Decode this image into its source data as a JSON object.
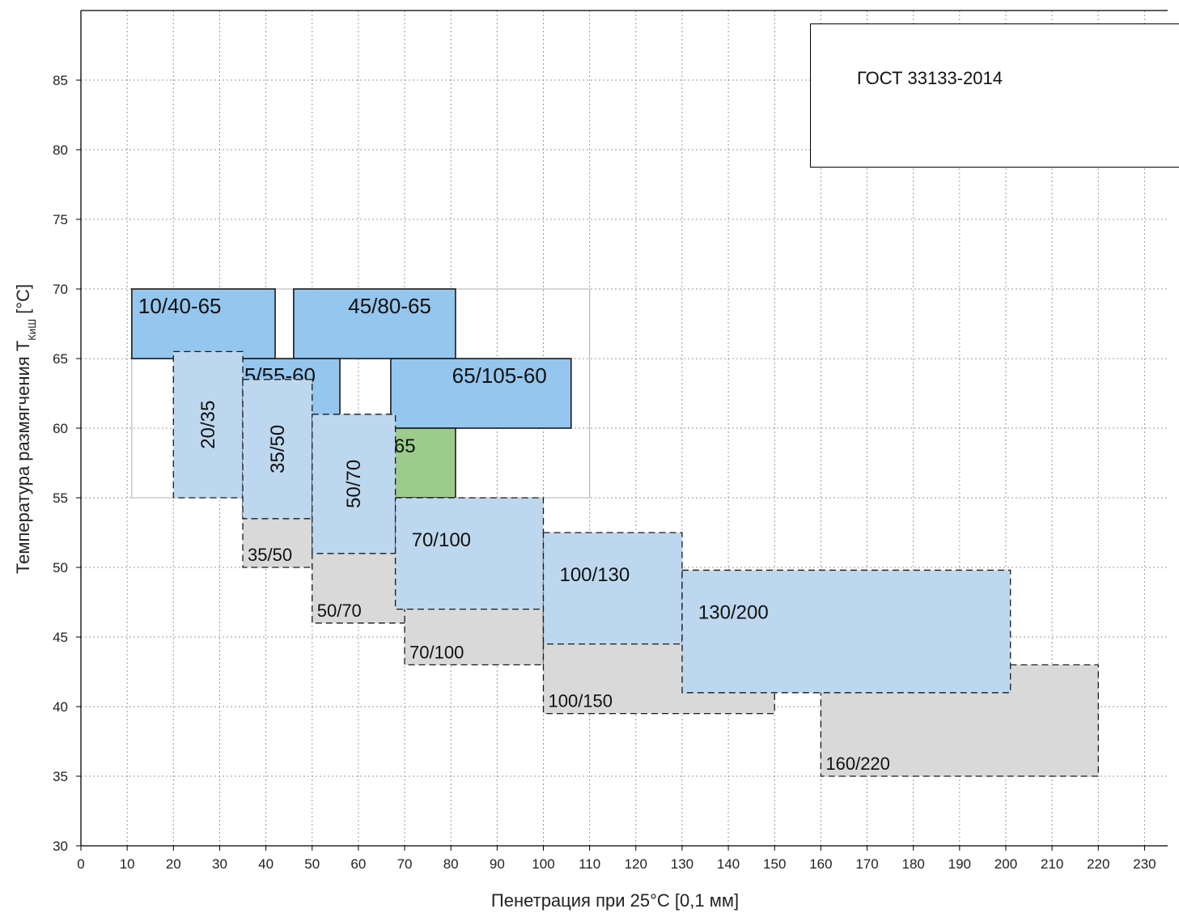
{
  "legend": {
    "text": "ГОСТ 33133-2014"
  },
  "chart_data": {
    "type": "bar",
    "xlabel": "Пенетрация при 25°С [0,1 мм]",
    "ylabel": "Температура размягчения Т",
    "ylabel_subscript": "КиШ",
    "ylabel_unit": " [°С]",
    "xlim": [
      0,
      235
    ],
    "ylim": [
      30,
      90
    ],
    "x_ticks": [
      0,
      10,
      20,
      30,
      40,
      50,
      60,
      70,
      80,
      90,
      100,
      110,
      120,
      130,
      140,
      150,
      160,
      170,
      180,
      190,
      200,
      210,
      220,
      230
    ],
    "y_ticks": [
      30,
      35,
      40,
      45,
      50,
      55,
      60,
      65,
      70,
      75,
      80,
      85
    ],
    "grid": true,
    "legend_position": "top-right",
    "colors": {
      "pmb_blue": "#94c6ee",
      "gost_light_blue": "#bdd7ee",
      "en_gray": "#d9d9d9",
      "green": "#9ccc8c"
    },
    "background_outline": [
      {
        "x0": 11,
        "x1": 110,
        "y0": 55,
        "y1": 70
      }
    ],
    "ranges": [
      {
        "label": "10/40-65",
        "group": "pmb",
        "x0": 11,
        "x1": 42,
        "y0": 65,
        "y1": 70
      },
      {
        "label": "45/80-65",
        "group": "pmb",
        "x0": 46,
        "x1": 81,
        "y0": 65,
        "y1": 70
      },
      {
        "label": "25/55-60",
        "group": "pmb",
        "x0": 25,
        "x1": 56,
        "y0": 60,
        "y1": 65
      },
      {
        "label": "65/105-60",
        "group": "pmb",
        "x0": 67,
        "x1": 106,
        "y0": 60,
        "y1": 65
      },
      {
        "label": "65",
        "group": "green",
        "x0": 67,
        "x1": 81,
        "y0": 55,
        "y1": 60
      },
      {
        "label": "35/50",
        "group": "en",
        "x0": 35,
        "x1": 53,
        "y0": 50,
        "y1": 58
      },
      {
        "label": "50/70",
        "group": "en",
        "x0": 50,
        "x1": 72,
        "y0": 46,
        "y1": 54
      },
      {
        "label": "70/100",
        "group": "en",
        "x0": 70,
        "x1": 100,
        "y0": 43,
        "y1": 51
      },
      {
        "label": "100/150",
        "group": "en",
        "x0": 100,
        "x1": 150,
        "y0": 39.5,
        "y1": 47
      },
      {
        "label": "160/220",
        "group": "en",
        "x0": 160,
        "x1": 220,
        "y0": 35,
        "y1": 43
      },
      {
        "label": "20/35",
        "group": "gost",
        "x0": 20,
        "x1": 35,
        "y0": 55,
        "y1": 65.5
      },
      {
        "label": "35/50",
        "group": "gost",
        "x0": 35,
        "x1": 50,
        "y0": 53.5,
        "y1": 63.5
      },
      {
        "label": "50/70",
        "group": "gost",
        "x0": 50,
        "x1": 68,
        "y0": 51,
        "y1": 61
      },
      {
        "label": "70/100",
        "group": "gost",
        "x0": 68,
        "x1": 100,
        "y0": 47,
        "y1": 55
      },
      {
        "label": "100/130",
        "group": "gost",
        "x0": 100,
        "x1": 130,
        "y0": 44.5,
        "y1": 52.5
      },
      {
        "label": "130/200",
        "group": "gost",
        "x0": 130,
        "x1": 201,
        "y0": 41,
        "y1": 49.8
      }
    ]
  }
}
